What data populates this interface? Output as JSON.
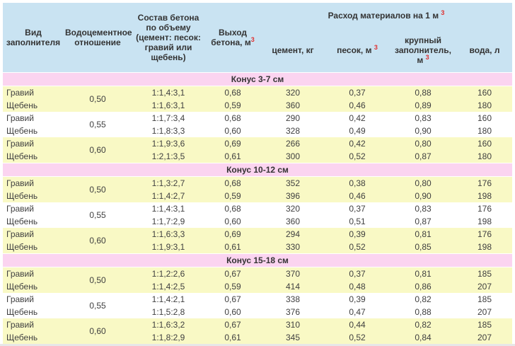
{
  "header": {
    "fill_type": "Вид заполнителя",
    "wc_ratio": "Водоцементное отношение",
    "composition": "Состав бетона по объему (цемент: песок: гравий или щебень)",
    "yield_text": "Выход бетона, м",
    "group_text": "Расход материалов на 1 м",
    "cement": "цемент, кг",
    "sand_text": "песок, м",
    "coarse_text": "крупный заполнитель, м",
    "water": "вода, л",
    "sup": "3"
  },
  "chart_data": {
    "type": "table",
    "title": "",
    "columns": [
      "Вид заполнителя",
      "Водоцементное отношение",
      "Состав бетона по объему (цемент: песок: гравий или щебень)",
      "Выход бетона, м³",
      "Расход материалов на 1 м³ — цемент, кг",
      "Расход материалов на 1 м³ — песок, м³",
      "Расход материалов на 1 м³ — крупный заполнитель, м³",
      "Расход материалов на 1 м³ — вода, л"
    ],
    "sections": [
      {
        "title": "Конус 3-7 см",
        "groups": [
          {
            "ratio": "0,50",
            "rows": [
              {
                "fill": "Гравий",
                "comp": "1:1,4:3,1",
                "yield": "0,68",
                "cement": "320",
                "sand": "0,37",
                "coarse": "0,88",
                "water": "160"
              },
              {
                "fill": "Щебень",
                "comp": "1:1,6:3,1",
                "yield": "0,59",
                "cement": "360",
                "sand": "0,46",
                "coarse": "0,89",
                "water": "180"
              }
            ]
          },
          {
            "ratio": "0,55",
            "rows": [
              {
                "fill": "Гравий",
                "comp": "1:1,7:3,4",
                "yield": "0,68",
                "cement": "290",
                "sand": "0,42",
                "coarse": "0,83",
                "water": "160"
              },
              {
                "fill": "Щебень",
                "comp": "1:1,8:3,3",
                "yield": "0,60",
                "cement": "328",
                "sand": "0,49",
                "coarse": "0,90",
                "water": "180"
              }
            ]
          },
          {
            "ratio": "0,60",
            "rows": [
              {
                "fill": "Гравий",
                "comp": "1:1,9:3,6",
                "yield": "0,69",
                "cement": "266",
                "sand": "0,42",
                "coarse": "0,80",
                "water": "160"
              },
              {
                "fill": "Щебень",
                "comp": "1:2,1:3,5",
                "yield": "0,61",
                "cement": "300",
                "sand": "0,52",
                "coarse": "0,87",
                "water": "180"
              }
            ]
          }
        ]
      },
      {
        "title": "Конус 10-12 см",
        "groups": [
          {
            "ratio": "0,50",
            "rows": [
              {
                "fill": "Гравий",
                "comp": "1:1,3:2,7",
                "yield": "0,68",
                "cement": "352",
                "sand": "0,38",
                "coarse": "0,80",
                "water": "176"
              },
              {
                "fill": "Щебень",
                "comp": "1:1,4:2,7",
                "yield": "0,59",
                "cement": "396",
                "sand": "0,46",
                "coarse": "0,90",
                "water": "198"
              }
            ]
          },
          {
            "ratio": "0,55",
            "rows": [
              {
                "fill": "Гравий",
                "comp": "1:1,4:3,1",
                "yield": "0,68",
                "cement": "320",
                "sand": "0,37",
                "coarse": "0,83",
                "water": "176"
              },
              {
                "fill": "Щебень",
                "comp": "1:1,7:2,9",
                "yield": "0,60",
                "cement": "360",
                "sand": "0,51",
                "coarse": "0,87",
                "water": "198"
              }
            ]
          },
          {
            "ratio": "0,60",
            "rows": [
              {
                "fill": "Гравий",
                "comp": "1:1,6:3,3",
                "yield": "0,69",
                "cement": "294",
                "sand": "0,39",
                "coarse": "0,81",
                "water": "176"
              },
              {
                "fill": "Щебень",
                "comp": "1:1,9:3,1",
                "yield": "0,61",
                "cement": "330",
                "sand": "0,52",
                "coarse": "0,85",
                "water": "198"
              }
            ]
          }
        ]
      },
      {
        "title": "Конус 15-18 см",
        "groups": [
          {
            "ratio": "0,50",
            "rows": [
              {
                "fill": "Гравий",
                "comp": "1:1,2:2,6",
                "yield": "0,67",
                "cement": "370",
                "sand": "0,37",
                "coarse": "0,81",
                "water": "185"
              },
              {
                "fill": "Щебень",
                "comp": "1:1,4:2,5",
                "yield": "0,59",
                "cement": "414",
                "sand": "0,48",
                "coarse": "0,86",
                "water": "207"
              }
            ]
          },
          {
            "ratio": "0,55",
            "rows": [
              {
                "fill": "Гравий",
                "comp": "1:1,4:2,1",
                "yield": "0,67",
                "cement": "338",
                "sand": "0,39",
                "coarse": "0,82",
                "water": "185"
              },
              {
                "fill": "Щебень",
                "comp": "1:1,5:2,8",
                "yield": "0,60",
                "cement": "376",
                "sand": "0,47",
                "coarse": "0,88",
                "water": "207"
              }
            ]
          },
          {
            "ratio": "0,60",
            "rows": [
              {
                "fill": "Гравий",
                "comp": "1:1,6:3,2",
                "yield": "0,67",
                "cement": "310",
                "sand": "0,44",
                "coarse": "0,82",
                "water": "185"
              },
              {
                "fill": "Щебень",
                "comp": "1:1,8:2,9",
                "yield": "0,61",
                "cement": "345",
                "sand": "0,52",
                "coarse": "0,84",
                "water": "207"
              }
            ]
          }
        ]
      }
    ]
  },
  "colors": {
    "header_bg": "#c9e3f2",
    "section_bg": "#fbd4f0",
    "row_yellow": "#f9f9c5",
    "row_white": "#ffffff",
    "text": "#404040",
    "superscript_red": "#e03030"
  }
}
